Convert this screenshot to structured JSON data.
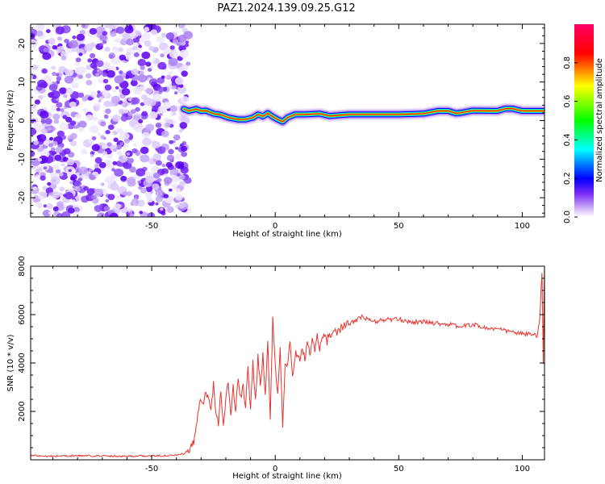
{
  "title": "PAZ1.2024.139.09.25.G12",
  "chart_data": [
    {
      "type": "heatmap",
      "xlabel": "Height of straight line (km)",
      "ylabel": "Frequency (Hz)",
      "xlim": [
        -99,
        109
      ],
      "ylim": [
        -25,
        25
      ],
      "xticks": [
        -50,
        0,
        50,
        100
      ],
      "xtick_labels": [
        "-50",
        "0",
        "50",
        "100"
      ],
      "yticks": [
        -20,
        -10,
        0,
        10,
        20
      ],
      "ytick_labels": [
        "-20",
        "-10",
        "0",
        "10",
        "20"
      ],
      "colorbar": {
        "label": "Normalized spectral amplitude",
        "range": [
          0,
          1
        ],
        "ticks": [
          0.0,
          0.2,
          0.4,
          0.6,
          0.8
        ],
        "tick_labels": [
          "0.0",
          "0.2",
          "0.4",
          "0.6",
          "0.8"
        ],
        "colormap": [
          "#ffffff",
          "#9a63f2",
          "#5a00ff",
          "#0000ff",
          "#00ffff",
          "#00ff00",
          "#ffff00",
          "#ff0000",
          "#ff0066"
        ]
      },
      "noise_region_x": [
        -99,
        -37
      ],
      "ridge": {
        "x": [
          -37,
          -35,
          -32,
          -30,
          -28,
          -25,
          -22,
          -19,
          -15,
          -12,
          -9,
          -7,
          -5,
          -3,
          -1,
          1,
          3,
          5,
          8,
          12,
          18,
          22,
          30,
          40,
          50,
          60,
          66,
          70,
          73,
          75,
          80,
          90,
          93,
          96,
          100,
          105,
          109
        ],
        "frequency": [
          3.0,
          2.5,
          3.0,
          2.5,
          2.6,
          1.8,
          1.5,
          0.8,
          0.3,
          0.3,
          0.8,
          1.6,
          1.1,
          1.9,
          1.0,
          0.3,
          -0.3,
          0.8,
          1.6,
          1.6,
          1.8,
          1.2,
          1.6,
          1.6,
          1.6,
          1.8,
          2.5,
          2.5,
          1.9,
          2.0,
          2.6,
          2.5,
          3.1,
          3.1,
          2.5,
          2.5,
          2.5
        ]
      }
    },
    {
      "type": "line",
      "xlabel": "Height of straight line (km)",
      "ylabel": "SNR (10 * v/v)",
      "xlim": [
        -99,
        109
      ],
      "ylim": [
        0,
        8000
      ],
      "xticks": [
        -50,
        0,
        50,
        100
      ],
      "xtick_labels": [
        "-50",
        "0",
        "50",
        "100"
      ],
      "yticks": [
        2000,
        4000,
        6000,
        8000
      ],
      "ytick_labels": [
        "2000",
        "4000",
        "6000",
        "8000"
      ],
      "color": "#e8332e",
      "series": [
        {
          "x": [
            -99,
            -90,
            -80,
            -70,
            -60,
            -50,
            -40,
            -37,
            -35,
            -33,
            -31,
            -30,
            -29,
            -28,
            -27,
            -26,
            -25,
            -24,
            -23,
            -22,
            -21,
            -20,
            -19,
            -18,
            -17,
            -16,
            -15,
            -14,
            -13,
            -12,
            -11,
            -10,
            -9,
            -8,
            -7,
            -6,
            -5,
            -4,
            -3,
            -2,
            -1,
            0,
            1,
            2,
            3,
            4,
            5,
            6,
            7,
            8,
            9,
            10,
            11,
            12,
            13,
            14,
            15,
            16,
            17,
            18,
            19,
            20,
            21,
            22,
            23,
            24,
            25,
            27,
            30,
            33,
            35,
            40,
            45,
            50,
            55,
            60,
            65,
            70,
            75,
            80,
            85,
            90,
            95,
            100,
            103,
            106,
            107,
            108,
            108.5,
            109
          ],
          "values": [
            180,
            150,
            170,
            160,
            150,
            160,
            180,
            250,
            300,
            700,
            2200,
            2600,
            2400,
            2800,
            2500,
            2200,
            3100,
            2000,
            1500,
            3000,
            1300,
            2600,
            3200,
            1800,
            3000,
            2000,
            3400,
            2500,
            3000,
            2200,
            3800,
            2100,
            4000,
            2500,
            4200,
            3200,
            4300,
            2800,
            4800,
            1800,
            5900,
            3800,
            2800,
            4500,
            1400,
            3800,
            4100,
            4800,
            3500,
            4300,
            4500,
            4200,
            4700,
            4100,
            4800,
            4400,
            5000,
            4500,
            5100,
            4500,
            5000,
            5200,
            4900,
            5300,
            5100,
            5400,
            5300,
            5500,
            5600,
            5800,
            5900,
            5700,
            5800,
            5800,
            5700,
            5700,
            5650,
            5600,
            5500,
            5600,
            5450,
            5400,
            5300,
            5200,
            5200,
            5100,
            5700,
            7800,
            4000,
            8000
          ]
        }
      ]
    }
  ]
}
